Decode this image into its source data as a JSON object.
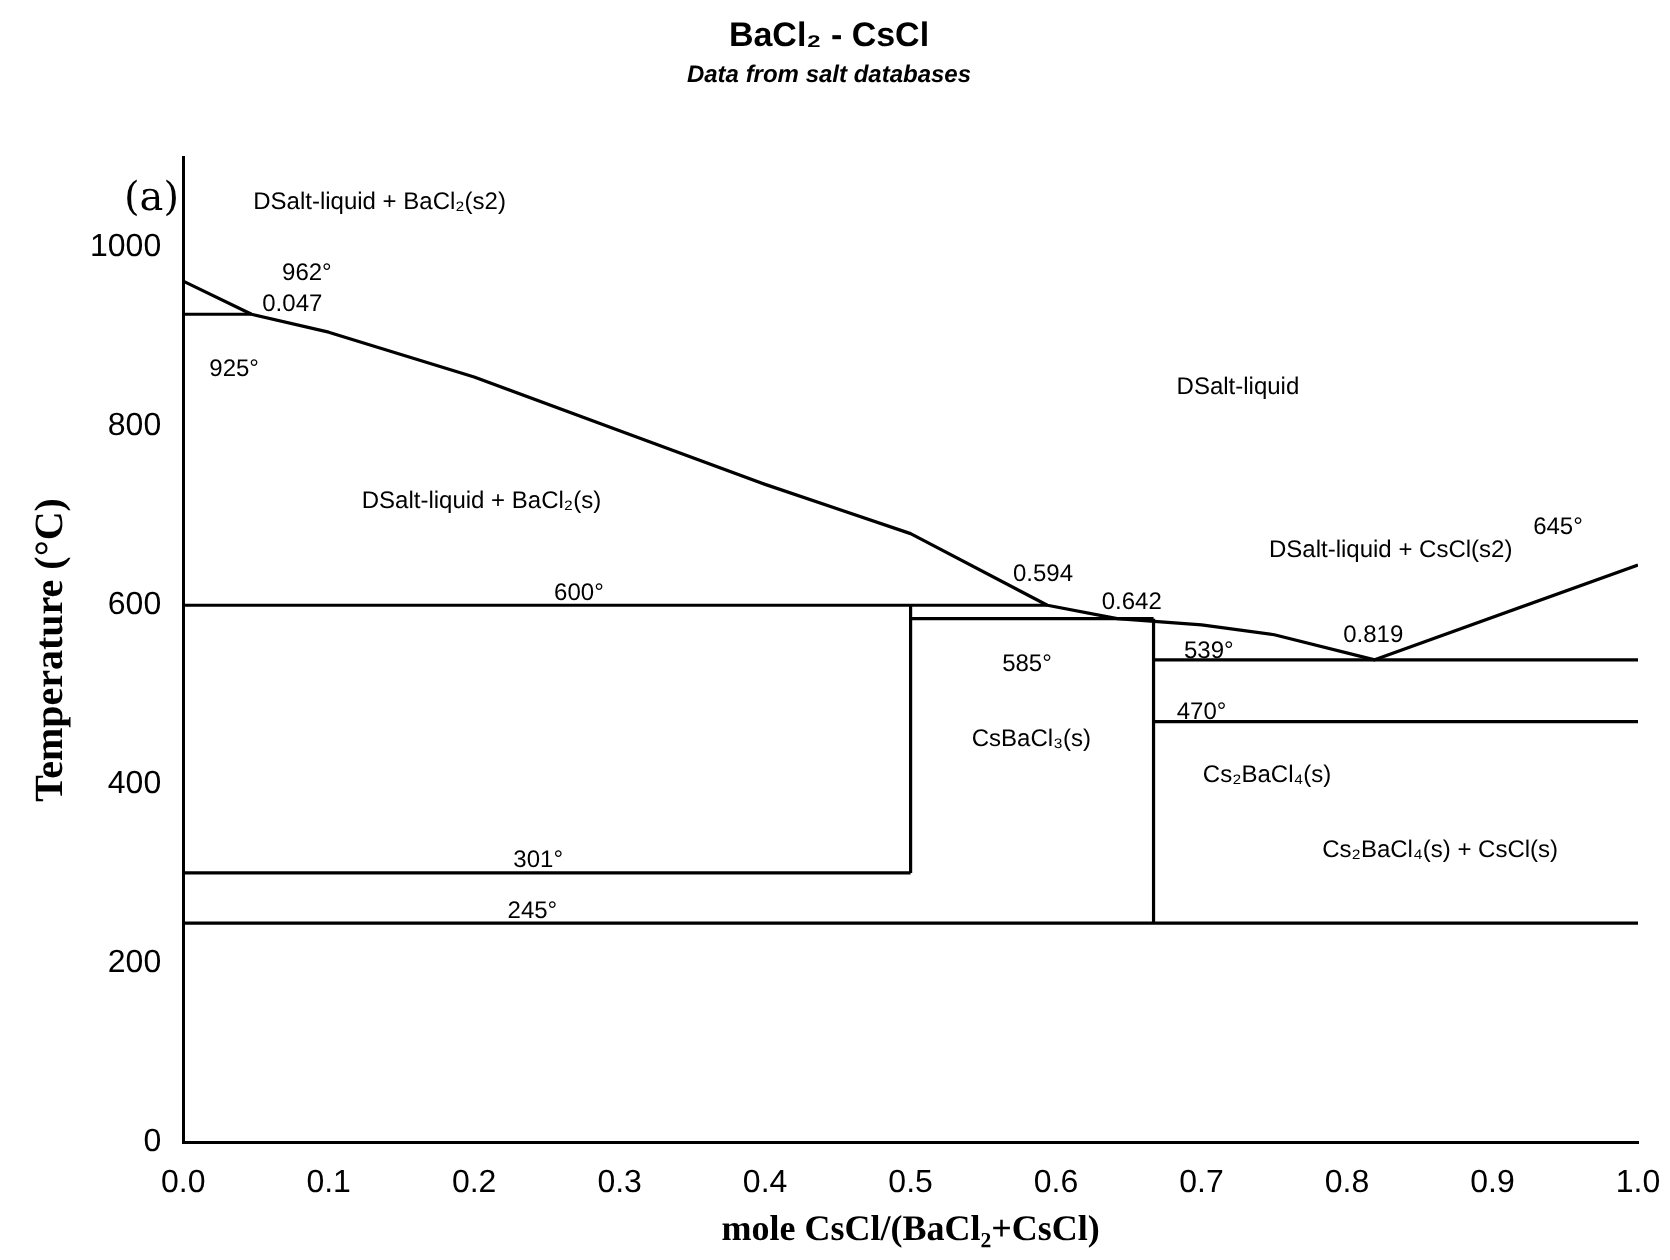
{
  "chart_data": {
    "type": "line",
    "title": "BaCl₂ - CsCl",
    "subtitle": "Data from salt databases",
    "xlabel": "mole CsCl/(BaCl₂+CsCl)",
    "ylabel": "Temperature (°C)",
    "xlim": [
      0,
      1
    ],
    "xticks": [
      {
        "value": 0,
        "label": "0.0"
      },
      {
        "value": 0.1,
        "label": "0.1"
      },
      {
        "value": 0.2,
        "label": "0.2"
      },
      {
        "value": 0.3,
        "label": "0.3"
      },
      {
        "value": 0.4,
        "label": "0.4"
      },
      {
        "value": 0.5,
        "label": "0.5"
      },
      {
        "value": 0.6,
        "label": "0.6"
      },
      {
        "value": 0.7,
        "label": "0.7"
      },
      {
        "value": 0.8,
        "label": "0.8"
      },
      {
        "value": 0.9,
        "label": "0.9"
      },
      {
        "value": 1,
        "label": "1.0"
      }
    ],
    "ylim": [
      0,
      1100
    ],
    "yticks": [
      0,
      200,
      400,
      600,
      800,
      1000
    ],
    "grid": false,
    "legend": false,
    "series": [
      {
        "color": "#000000",
        "x": [
          0,
          0.047
        ],
        "values": [
          925,
          925
        ]
      },
      {
        "color": "#000000",
        "x": [
          0,
          0.047,
          0.1,
          0.2,
          0.3,
          0.4,
          0.5,
          0.594,
          0.642,
          0.7,
          0.75,
          0.819,
          1
        ],
        "values": [
          962,
          925,
          905,
          855,
          795,
          735,
          680,
          600,
          585,
          578,
          567,
          539,
          645
        ]
      },
      {
        "color": "#000000",
        "x": [
          0,
          0.594
        ],
        "values": [
          600,
          600
        ]
      },
      {
        "color": "#000000",
        "x": [
          0.5,
          0.667
        ],
        "values": [
          585,
          585
        ]
      },
      {
        "color": "#000000",
        "x": [
          0.5,
          0.5
        ],
        "values": [
          301,
          600
        ]
      },
      {
        "color": "#000000",
        "x": [
          0.667,
          0.667
        ],
        "values": [
          245,
          585
        ]
      },
      {
        "color": "#000000",
        "x": [
          0,
          0.5
        ],
        "values": [
          301,
          301
        ]
      },
      {
        "color": "#000000",
        "x": [
          0,
          1
        ],
        "values": [
          245,
          245
        ]
      },
      {
        "color": "#000000",
        "x": [
          0.667,
          1
        ],
        "values": [
          539,
          539
        ]
      },
      {
        "color": "#000000",
        "x": [
          0.667,
          1
        ],
        "values": [
          470,
          470
        ]
      }
    ],
    "annotations": [
      "(a)",
      "DSalt-liquid + BaCl₂(s2)",
      "962°",
      "0.047",
      "925°",
      "DSalt-liquid",
      "DSalt-liquid + BaCl₂(s)",
      "600°",
      "0.594",
      "0.642",
      "585°",
      "539°",
      "0.819",
      "645°",
      "DSalt-liquid + CsCl(s2)",
      "470°",
      "CsBaCl₃(s)",
      "Cs₂BaCl₄(s)",
      "Cs₂BaCl₄(s) + CsCl(s)",
      "301°",
      "245°"
    ]
  }
}
